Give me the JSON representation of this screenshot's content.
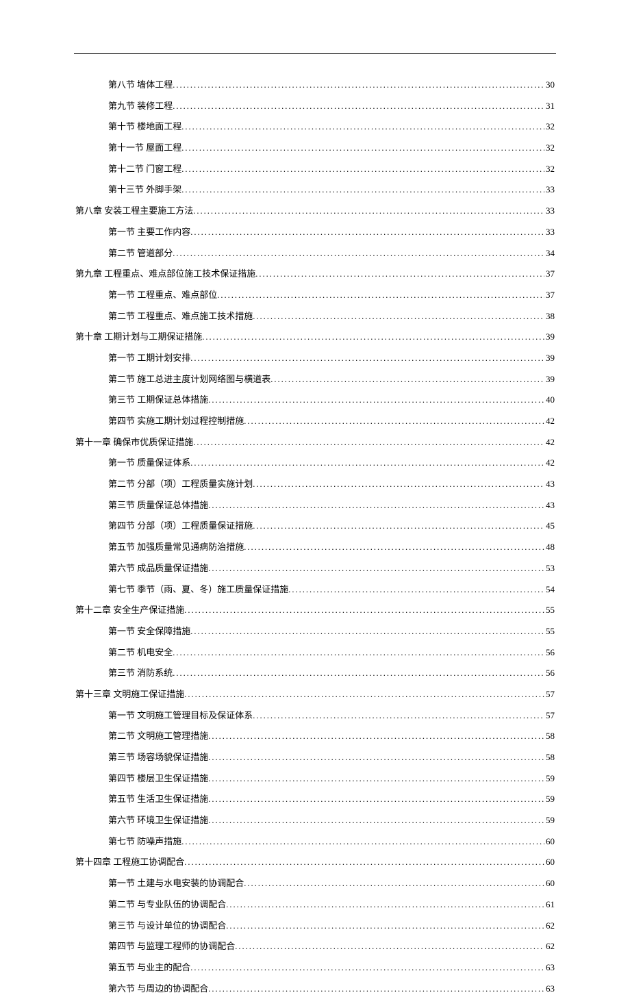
{
  "entries": [
    {
      "level": 2,
      "title": "第八节 墙体工程",
      "page": "30"
    },
    {
      "level": 2,
      "title": "第九节 装修工程",
      "page": "31"
    },
    {
      "level": 2,
      "title": "第十节 楼地面工程",
      "page": "32"
    },
    {
      "level": 2,
      "title": "第十一节 屋面工程",
      "page": "32"
    },
    {
      "level": 2,
      "title": "第十二节 门窗工程",
      "page": "32"
    },
    {
      "level": 2,
      "title": "第十三节 外脚手架",
      "page": "33"
    },
    {
      "level": 1,
      "title": "第八章 安装工程主要施工方法",
      "page": "33"
    },
    {
      "level": 2,
      "title": "第一节 主要工作内容",
      "page": "33"
    },
    {
      "level": 2,
      "title": "第二节 管道部分",
      "page": "34"
    },
    {
      "level": 1,
      "title": "第九章 工程重点、难点部位施工技术保证措施",
      "page": "37"
    },
    {
      "level": 2,
      "title": "第一节 工程重点、难点部位",
      "page": "37"
    },
    {
      "level": 2,
      "title": "第二节 工程重点、难点施工技术措施",
      "page": "38"
    },
    {
      "level": 1,
      "title": "第十章 工期计划与工期保证措施",
      "page": "39"
    },
    {
      "level": 2,
      "title": "第一节 工期计划安排",
      "page": "39"
    },
    {
      "level": 2,
      "title": "第二节 施工总进主度计划网络图与横道表",
      "page": "39"
    },
    {
      "level": 2,
      "title": "第三节 工期保证总体措施",
      "page": "40"
    },
    {
      "level": 2,
      "title": "第四节 实施工期计划过程控制措施",
      "page": "42"
    },
    {
      "level": 1,
      "title": "第十一章 确保市优质保证措施",
      "page": "42"
    },
    {
      "level": 2,
      "title": "第一节 质量保证体系",
      "page": "42"
    },
    {
      "level": 2,
      "title": "第二节 分部（项）工程质量实施计划",
      "page": "43"
    },
    {
      "level": 2,
      "title": "第三节 质量保证总体措施",
      "page": "43"
    },
    {
      "level": 2,
      "title": "第四节 分部（项）工程质量保证措施",
      "page": "45"
    },
    {
      "level": 2,
      "title": "第五节 加强质量常见通病防治措施",
      "page": "48"
    },
    {
      "level": 2,
      "title": "第六节 成品质量保证措施",
      "page": "53"
    },
    {
      "level": 2,
      "title": "第七节 季节（雨、夏、冬）施工质量保证措施",
      "page": "54"
    },
    {
      "level": 1,
      "title": "第十二章 安全生产保证措施",
      "page": "55"
    },
    {
      "level": 2,
      "title": "第一节 安全保障措施",
      "page": "55"
    },
    {
      "level": 2,
      "title": "第二节 机电安全",
      "page": "56"
    },
    {
      "level": 2,
      "title": "第三节 消防系统",
      "page": "56"
    },
    {
      "level": 1,
      "title": "第十三章 文明施工保证措施",
      "page": "57"
    },
    {
      "level": 2,
      "title": "第一节 文明施工管理目标及保证体系",
      "page": "57"
    },
    {
      "level": 2,
      "title": "第二节 文明施工管理措施",
      "page": "58"
    },
    {
      "level": 2,
      "title": "第三节 场容场貌保证措施",
      "page": "58"
    },
    {
      "level": 2,
      "title": "第四节 楼层卫生保证措施",
      "page": "59"
    },
    {
      "level": 2,
      "title": "第五节 生活卫生保证措施",
      "page": "59"
    },
    {
      "level": 2,
      "title": "第六节 环境卫生保证措施",
      "page": "59"
    },
    {
      "level": 2,
      "title": "第七节 防噪声措施",
      "page": "60"
    },
    {
      "level": 1,
      "title": "第十四章 工程施工协调配合",
      "page": "60"
    },
    {
      "level": 2,
      "title": "第一节 土建与水电安装的协调配合",
      "page": "60"
    },
    {
      "level": 2,
      "title": "第二节 与专业队伍的协调配合",
      "page": "61"
    },
    {
      "level": 2,
      "title": "第三节 与设计单位的协调配合",
      "page": "62"
    },
    {
      "level": 2,
      "title": "第四节 与监理工程师的协调配合",
      "page": "62"
    },
    {
      "level": 2,
      "title": "第五节 与业主的配合",
      "page": "63"
    },
    {
      "level": 2,
      "title": "第六节 与周边的协调配合",
      "page": "63"
    }
  ]
}
